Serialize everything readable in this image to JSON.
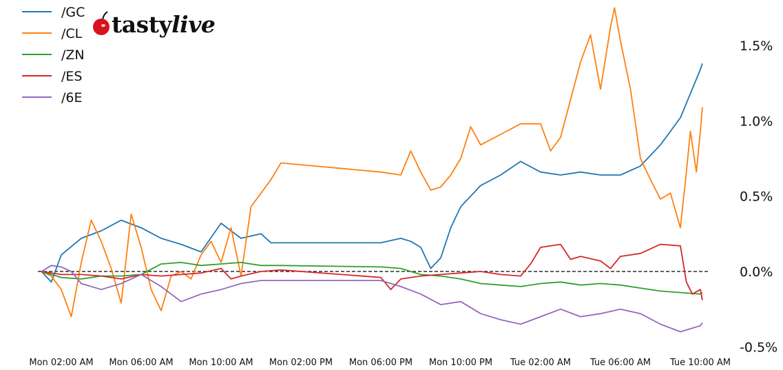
{
  "logo": {
    "text_main": "tasty",
    "text_italic": "live"
  },
  "chart_data": {
    "type": "line",
    "title": "",
    "xlabel": "",
    "ylabel": "",
    "ylim": [
      -0.5,
      1.75
    ],
    "y_unit": "%",
    "y_axis_side": "right",
    "yticks": [
      {
        "value": 1.5,
        "label": "1.5%"
      },
      {
        "value": 1.0,
        "label": "1.0%"
      },
      {
        "value": 0.5,
        "label": "0.5%"
      },
      {
        "value": 0.0,
        "label": "0.0%"
      },
      {
        "value": -0.5,
        "label": "-0.5%"
      }
    ],
    "xticks": [
      {
        "value": "Mon 02:00",
        "label": "Mon 02:00 AM"
      },
      {
        "value": "Mon 06:00",
        "label": "Mon 06:00 AM"
      },
      {
        "value": "Mon 10:00",
        "label": "Mon 10:00 AM"
      },
      {
        "value": "Mon 14:00",
        "label": "Mon 02:00 PM"
      },
      {
        "value": "Mon 18:00",
        "label": "Mon 06:00 PM"
      },
      {
        "value": "Mon 22:00",
        "label": "Mon 10:00 PM"
      },
      {
        "value": "Tue 02:00",
        "label": "Tue 02:00 AM"
      },
      {
        "value": "Tue 06:00",
        "label": "Tue 06:00 AM"
      },
      {
        "value": "Tue 10:00",
        "label": "Tue 10:00 AM"
      }
    ],
    "reference_line": {
      "value": 0.0,
      "style": "dashed",
      "color": "#000000"
    },
    "grid": false,
    "legend_placement": "top-left",
    "series": [
      {
        "name": "/GC",
        "color": "#1f77b4",
        "points": [
          [
            "Mon 01:00",
            0
          ],
          [
            "Mon 01:30",
            -0.07
          ],
          [
            "Mon 02:00",
            0.11
          ],
          [
            "Mon 03:00",
            0.22
          ],
          [
            "Mon 04:00",
            0.27
          ],
          [
            "Mon 05:00",
            0.34
          ],
          [
            "Mon 06:00",
            0.29
          ],
          [
            "Mon 07:00",
            0.22
          ],
          [
            "Mon 08:00",
            0.18
          ],
          [
            "Mon 09:00",
            0.13
          ],
          [
            "Mon 10:00",
            0.32
          ],
          [
            "Mon 11:00",
            0.22
          ],
          [
            "Mon 12:00",
            0.25
          ],
          [
            "Mon 12:30",
            0.19
          ],
          [
            "Mon 13:00",
            0.19
          ],
          [
            "Mon 18:00",
            0.19
          ],
          [
            "Mon 19:00",
            0.22
          ],
          [
            "Mon 19:30",
            0.2
          ],
          [
            "Mon 20:00",
            0.16
          ],
          [
            "Mon 20:30",
            0.02
          ],
          [
            "Mon 21:00",
            0.09
          ],
          [
            "Mon 21:30",
            0.29
          ],
          [
            "Mon 22:00",
            0.43
          ],
          [
            "Mon 23:00",
            0.57
          ],
          [
            "Tue 00:00",
            0.64
          ],
          [
            "Tue 01:00",
            0.73
          ],
          [
            "Tue 02:00",
            0.66
          ],
          [
            "Tue 03:00",
            0.64
          ],
          [
            "Tue 04:00",
            0.66
          ],
          [
            "Tue 05:00",
            0.64
          ],
          [
            "Tue 06:00",
            0.64
          ],
          [
            "Tue 07:00",
            0.7
          ],
          [
            "Tue 08:00",
            0.84
          ],
          [
            "Tue 09:00",
            1.02
          ],
          [
            "Tue 10:00",
            1.34
          ],
          [
            "Tue 10:06",
            1.38
          ]
        ]
      },
      {
        "name": "/CL",
        "color": "#ff7f0e",
        "points": [
          [
            "Mon 01:00",
            0
          ],
          [
            "Mon 01:30",
            -0.03
          ],
          [
            "Mon 02:00",
            -0.12
          ],
          [
            "Mon 02:30",
            -0.3
          ],
          [
            "Mon 03:00",
            0.06
          ],
          [
            "Mon 03:30",
            0.34
          ],
          [
            "Mon 04:00",
            0.2
          ],
          [
            "Mon 04:30",
            0.02
          ],
          [
            "Mon 05:00",
            -0.21
          ],
          [
            "Mon 05:30",
            0.38
          ],
          [
            "Mon 06:00",
            0.16
          ],
          [
            "Mon 06:30",
            -0.12
          ],
          [
            "Mon 07:00",
            -0.26
          ],
          [
            "Mon 07:30",
            -0.03
          ],
          [
            "Mon 08:00",
            0
          ],
          [
            "Mon 08:30",
            -0.05
          ],
          [
            "Mon 09:00",
            0.11
          ],
          [
            "Mon 09:30",
            0.2
          ],
          [
            "Mon 10:00",
            0.06
          ],
          [
            "Mon 10:30",
            0.29
          ],
          [
            "Mon 11:00",
            -0.03
          ],
          [
            "Mon 11:30",
            0.43
          ],
          [
            "Mon 12:00",
            0.52
          ],
          [
            "Mon 12:30",
            0.61
          ],
          [
            "Mon 13:00",
            0.72
          ],
          [
            "Mon 18:00",
            0.66
          ],
          [
            "Mon 19:00",
            0.64
          ],
          [
            "Mon 19:30",
            0.8
          ],
          [
            "Mon 20:00",
            0.66
          ],
          [
            "Mon 20:30",
            0.54
          ],
          [
            "Mon 21:00",
            0.56
          ],
          [
            "Mon 21:30",
            0.64
          ],
          [
            "Mon 22:00",
            0.75
          ],
          [
            "Mon 22:30",
            0.96
          ],
          [
            "Mon 23:00",
            0.84
          ],
          [
            "Tue 00:00",
            0.91
          ],
          [
            "Tue 01:00",
            0.98
          ],
          [
            "Tue 02:00",
            0.98
          ],
          [
            "Tue 02:30",
            0.8
          ],
          [
            "Tue 03:00",
            0.89
          ],
          [
            "Tue 04:00",
            1.39
          ],
          [
            "Tue 04:30",
            1.57
          ],
          [
            "Tue 05:00",
            1.21
          ],
          [
            "Tue 05:30",
            1.62
          ],
          [
            "Tue 05:42",
            1.75
          ],
          [
            "Tue 06:00",
            1.53
          ],
          [
            "Tue 06:30",
            1.21
          ],
          [
            "Tue 07:00",
            0.75
          ],
          [
            "Tue 07:30",
            0.61
          ],
          [
            "Tue 08:00",
            0.48
          ],
          [
            "Tue 08:30",
            0.52
          ],
          [
            "Tue 09:00",
            0.29
          ],
          [
            "Tue 09:18",
            0.66
          ],
          [
            "Tue 09:30",
            0.93
          ],
          [
            "Tue 09:48",
            0.66
          ],
          [
            "Tue 10:00",
            0.93
          ],
          [
            "Tue 10:06",
            1.09
          ]
        ]
      },
      {
        "name": "/ZN",
        "color": "#2ca02c",
        "points": [
          [
            "Mon 01:00",
            0
          ],
          [
            "Mon 02:00",
            -0.04
          ],
          [
            "Mon 03:00",
            -0.05
          ],
          [
            "Mon 04:00",
            -0.03
          ],
          [
            "Mon 05:00",
            -0.03
          ],
          [
            "Mon 06:00",
            -0.02
          ],
          [
            "Mon 07:00",
            0.05
          ],
          [
            "Mon 08:00",
            0.06
          ],
          [
            "Mon 09:00",
            0.04
          ],
          [
            "Mon 10:00",
            0.05
          ],
          [
            "Mon 11:00",
            0.06
          ],
          [
            "Mon 12:00",
            0.04
          ],
          [
            "Mon 13:00",
            0.04
          ],
          [
            "Mon 18:00",
            0.03
          ],
          [
            "Mon 19:00",
            0.02
          ],
          [
            "Mon 20:00",
            -0.02
          ],
          [
            "Mon 21:00",
            -0.03
          ],
          [
            "Mon 22:00",
            -0.05
          ],
          [
            "Mon 23:00",
            -0.08
          ],
          [
            "Tue 00:00",
            -0.09
          ],
          [
            "Tue 01:00",
            -0.1
          ],
          [
            "Tue 02:00",
            -0.08
          ],
          [
            "Tue 03:00",
            -0.07
          ],
          [
            "Tue 04:00",
            -0.09
          ],
          [
            "Tue 05:00",
            -0.08
          ],
          [
            "Tue 06:00",
            -0.09
          ],
          [
            "Tue 07:00",
            -0.11
          ],
          [
            "Tue 08:00",
            -0.13
          ],
          [
            "Tue 09:00",
            -0.14
          ],
          [
            "Tue 10:00",
            -0.15
          ],
          [
            "Tue 10:06",
            -0.14
          ]
        ]
      },
      {
        "name": "/ES",
        "color": "#d62728",
        "points": [
          [
            "Mon 01:00",
            0
          ],
          [
            "Mon 02:00",
            -0.02
          ],
          [
            "Mon 03:00",
            -0.02
          ],
          [
            "Mon 04:00",
            -0.03
          ],
          [
            "Mon 05:00",
            -0.05
          ],
          [
            "Mon 06:00",
            -0.02
          ],
          [
            "Mon 07:00",
            -0.03
          ],
          [
            "Mon 08:00",
            -0.02
          ],
          [
            "Mon 09:00",
            -0.01
          ],
          [
            "Mon 10:00",
            0.02
          ],
          [
            "Mon 10:30",
            -0.05
          ],
          [
            "Mon 11:00",
            -0.03
          ],
          [
            "Mon 12:00",
            0
          ],
          [
            "Mon 13:00",
            0.01
          ],
          [
            "Mon 18:00",
            -0.04
          ],
          [
            "Mon 18:30",
            -0.12
          ],
          [
            "Mon 19:00",
            -0.05
          ],
          [
            "Mon 20:00",
            -0.03
          ],
          [
            "Mon 21:00",
            -0.02
          ],
          [
            "Mon 22:00",
            -0.01
          ],
          [
            "Mon 23:00",
            0
          ],
          [
            "Tue 00:00",
            -0.02
          ],
          [
            "Tue 01:00",
            -0.03
          ],
          [
            "Tue 01:30",
            0.05
          ],
          [
            "Tue 02:00",
            0.16
          ],
          [
            "Tue 03:00",
            0.18
          ],
          [
            "Tue 03:30",
            0.08
          ],
          [
            "Tue 04:00",
            0.1
          ],
          [
            "Tue 05:00",
            0.07
          ],
          [
            "Tue 05:30",
            0.02
          ],
          [
            "Tue 06:00",
            0.1
          ],
          [
            "Tue 07:00",
            0.12
          ],
          [
            "Tue 08:00",
            0.18
          ],
          [
            "Tue 09:00",
            0.17
          ],
          [
            "Tue 09:18",
            -0.07
          ],
          [
            "Tue 09:36",
            -0.15
          ],
          [
            "Tue 10:00",
            -0.12
          ],
          [
            "Tue 10:06",
            -0.19
          ]
        ]
      },
      {
        "name": "/6E",
        "color": "#9467bd",
        "points": [
          [
            "Mon 01:00",
            0
          ],
          [
            "Mon 01:30",
            0.04
          ],
          [
            "Mon 02:00",
            0.03
          ],
          [
            "Mon 02:30",
            0
          ],
          [
            "Mon 03:00",
            -0.08
          ],
          [
            "Mon 04:00",
            -0.12
          ],
          [
            "Mon 05:00",
            -0.08
          ],
          [
            "Mon 06:00",
            -0.02
          ],
          [
            "Mon 07:00",
            -0.1
          ],
          [
            "Mon 07:30",
            -0.15
          ],
          [
            "Mon 08:00",
            -0.2
          ],
          [
            "Mon 09:00",
            -0.15
          ],
          [
            "Mon 10:00",
            -0.12
          ],
          [
            "Mon 11:00",
            -0.08
          ],
          [
            "Mon 12:00",
            -0.06
          ],
          [
            "Mon 13:00",
            -0.06
          ],
          [
            "Mon 18:00",
            -0.06
          ],
          [
            "Mon 19:00",
            -0.1
          ],
          [
            "Mon 20:00",
            -0.15
          ],
          [
            "Mon 21:00",
            -0.22
          ],
          [
            "Mon 22:00",
            -0.2
          ],
          [
            "Mon 23:00",
            -0.28
          ],
          [
            "Tue 00:00",
            -0.32
          ],
          [
            "Tue 01:00",
            -0.35
          ],
          [
            "Tue 02:00",
            -0.3
          ],
          [
            "Tue 03:00",
            -0.25
          ],
          [
            "Tue 04:00",
            -0.3
          ],
          [
            "Tue 05:00",
            -0.28
          ],
          [
            "Tue 06:00",
            -0.25
          ],
          [
            "Tue 07:00",
            -0.28
          ],
          [
            "Tue 08:00",
            -0.35
          ],
          [
            "Tue 09:00",
            -0.4
          ],
          [
            "Tue 10:00",
            -0.36
          ],
          [
            "Tue 10:06",
            -0.34
          ]
        ]
      }
    ]
  }
}
